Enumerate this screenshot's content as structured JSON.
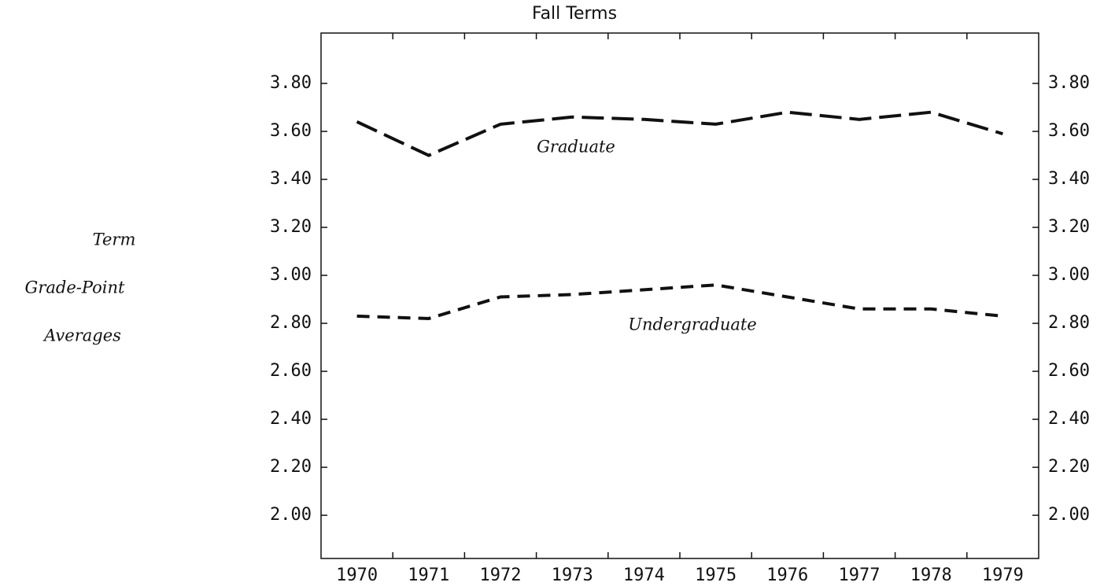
{
  "chart_data": {
    "type": "line",
    "title": "Fall Terms",
    "ylabel": [
      "Term",
      "Grade-Point",
      "Averages"
    ],
    "categories": [
      "1970",
      "1971",
      "1972",
      "1973",
      "1974",
      "1975",
      "1976",
      "1977",
      "1978",
      "1979"
    ],
    "series": [
      {
        "name": "Graduate",
        "color": "#111111",
        "dash": "28 10",
        "values": [
          3.64,
          3.5,
          3.63,
          3.66,
          3.65,
          3.63,
          3.68,
          3.65,
          3.68,
          3.59
        ]
      },
      {
        "name": "Undergraduate",
        "color": "#111111",
        "dash": "16 10",
        "values": [
          2.83,
          2.82,
          2.91,
          2.92,
          2.94,
          2.96,
          2.91,
          2.86,
          2.86,
          2.83
        ]
      }
    ],
    "ylim": [
      1.82,
      4.01
    ],
    "yticks": [
      {
        "value": 2.0,
        "label": "2.00"
      },
      {
        "value": 2.2,
        "label": "2.20"
      },
      {
        "value": 2.4,
        "label": "2.40"
      },
      {
        "value": 2.6,
        "label": "2.60"
      },
      {
        "value": 2.8,
        "label": "2.80"
      },
      {
        "value": 3.0,
        "label": "3.00"
      },
      {
        "value": 3.2,
        "label": "3.20"
      },
      {
        "value": 3.4,
        "label": "3.40"
      },
      {
        "value": 3.6,
        "label": "3.60"
      },
      {
        "value": 3.8,
        "label": "3.80"
      }
    ],
    "grid": false
  }
}
